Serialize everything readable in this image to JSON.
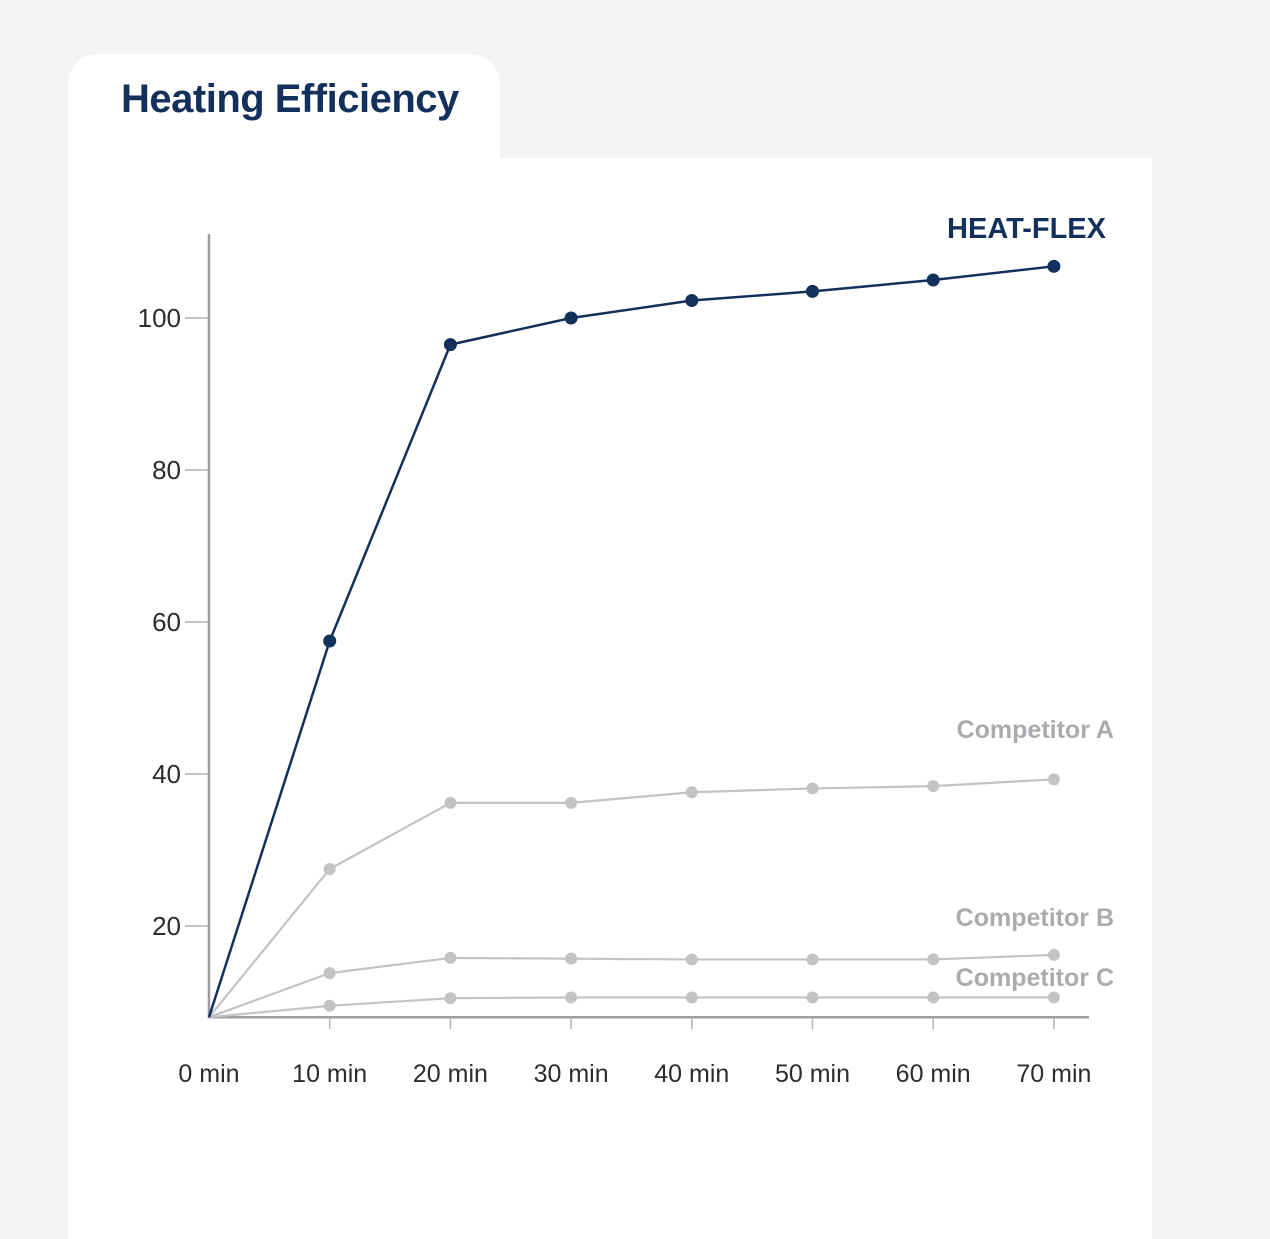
{
  "chart_data": {
    "type": "line",
    "title": "Heating Efficiency",
    "xlabel": "",
    "ylabel": "",
    "x": [
      "0 min",
      "10 min",
      "20 min",
      "30 min",
      "40 min",
      "50 min",
      "60 min",
      "70 min"
    ],
    "y_ticks": [
      20,
      40,
      60,
      80,
      100
    ],
    "ylim": [
      8,
      112
    ],
    "grid": false,
    "legend": "labels at right end of each series",
    "series": [
      {
        "name": "HEAT-FLEX",
        "color": "#13305c",
        "label_color": "#13305c",
        "values": [
          8,
          57.5,
          96.5,
          100,
          102.3,
          103.5,
          105,
          106.8
        ]
      },
      {
        "name": "Competitor A",
        "color": "#c3c3c6",
        "label_color": "#a9abae",
        "values": [
          8,
          27.5,
          36.2,
          36.2,
          37.6,
          38.1,
          38.4,
          39.3
        ]
      },
      {
        "name": "Competitor B",
        "color": "#c3c3c6",
        "label_color": "#a9abae",
        "values": [
          8,
          13.8,
          15.8,
          15.7,
          15.6,
          15.6,
          15.6,
          16.2
        ]
      },
      {
        "name": "Competitor C",
        "color": "#c3c3c6",
        "label_color": "#a9abae",
        "values": [
          8,
          9.5,
          10.5,
          10.6,
          10.6,
          10.6,
          10.6,
          10.6
        ]
      }
    ]
  }
}
